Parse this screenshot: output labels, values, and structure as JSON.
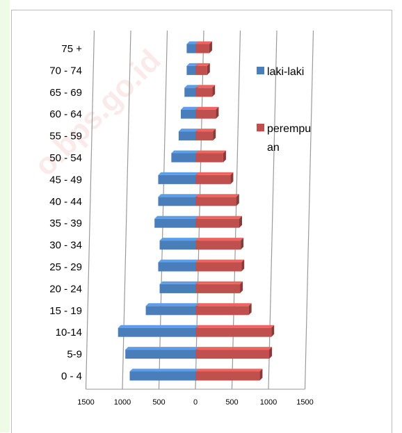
{
  "watermark": "o.bps.go.id",
  "chart_data": {
    "type": "bar",
    "orientation": "horizontal",
    "subtype": "population-pyramid",
    "title": "",
    "xlabel": "",
    "ylabel": "",
    "categories": [
      "0 - 4",
      "5-9",
      "10-14",
      "15 - 19",
      "20 - 24",
      "25 - 29",
      "30 - 34",
      "35 - 39",
      "40 - 44",
      "45 - 49",
      "50 - 54",
      "55 - 59",
      "60 - 64",
      "65 - 69",
      "70 - 74",
      "75 +"
    ],
    "series": [
      {
        "name": "laki-laki",
        "color": "#4a7ebb",
        "values": [
          900,
          960,
          1060,
          680,
          490,
          510,
          490,
          560,
          510,
          510,
          330,
          230,
          200,
          150,
          120,
          120
        ]
      },
      {
        "name": "perempuan",
        "color": "#c0504d",
        "values": [
          880,
          1010,
          1040,
          730,
          610,
          630,
          620,
          600,
          560,
          480,
          380,
          240,
          280,
          230,
          160,
          190
        ]
      }
    ],
    "legend_lines": [
      [
        "laki-laki"
      ],
      [
        "perempu",
        "an"
      ]
    ],
    "xticks": [
      "1500",
      "1000",
      "500",
      "0",
      "500",
      "1000",
      "1500"
    ],
    "xlim": [
      -1500,
      1500
    ],
    "grid": "vertical",
    "legend_position": "right"
  }
}
